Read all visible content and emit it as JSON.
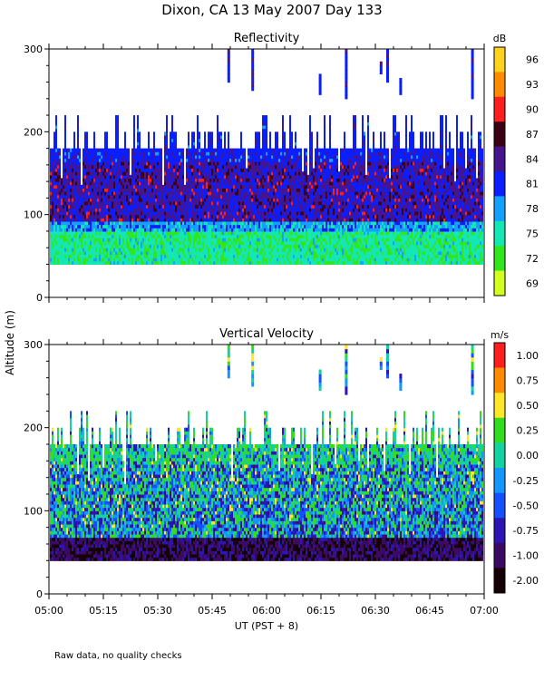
{
  "figure": {
    "title": "Dixon, CA 13 May 2007  Day 133",
    "ylabel": "Altitude (m)",
    "xlabel": "UT  (PST + 8)",
    "footnote": "Raw data, no quality checks"
  },
  "chart_data": [
    {
      "type": "heatmap",
      "title": "Reflectivity",
      "units": "dB",
      "xlim": [
        "05:00",
        "07:00"
      ],
      "x_ticks": [
        "05:00",
        "05:15",
        "05:30",
        "05:45",
        "06:00",
        "06:15",
        "06:30",
        "06:45",
        "07:00"
      ],
      "ylim": [
        0,
        300
      ],
      "y_ticks": [
        0,
        100,
        200,
        300
      ],
      "colorbar": {
        "labels": [
          96,
          93,
          90,
          87,
          84,
          81,
          78,
          75,
          72,
          69
        ],
        "colors": [
          "#ffd21e",
          "#ff8c00",
          "#ff1e1e",
          "#3c0014",
          "#46148c",
          "#0a1eff",
          "#14a0ff",
          "#14e6b4",
          "#32e61e",
          "#d2ff1e"
        ]
      },
      "data_summary": {
        "echo_base_m": 40,
        "echo_top_m": 180,
        "sporadic_echo_top_m": 220,
        "peak_band_m": [
          90,
          160
        ],
        "isolated_returns_near_top": true
      }
    },
    {
      "type": "heatmap",
      "title": "Vertical Velocity",
      "units": "m/s",
      "xlim": [
        "05:00",
        "07:00"
      ],
      "x_ticks": [
        "05:00",
        "05:15",
        "05:30",
        "05:45",
        "06:00",
        "06:15",
        "06:30",
        "06:45",
        "07:00"
      ],
      "ylim": [
        0,
        300
      ],
      "y_ticks": [
        0,
        100,
        200,
        300
      ],
      "colorbar": {
        "labels": [
          "1.00",
          "0.75",
          "0.50",
          "0.25",
          "0.00",
          "-0.25",
          "-0.50",
          "-0.75",
          "-1.00",
          "-2.00"
        ],
        "colors": [
          "#ff1e1e",
          "#ff8c00",
          "#ffe628",
          "#32dc1e",
          "#14d2a0",
          "#1496ff",
          "#1450ff",
          "#2d14b4",
          "#3c0a64",
          "#140005"
        ]
      },
      "data_summary": {
        "echo_base_m": 40,
        "echo_top_m": 180,
        "sporadic_echo_top_m": 220,
        "dominant_range_ms": [
          -0.75,
          0.5
        ],
        "isolated_returns_near_top": true
      }
    }
  ]
}
